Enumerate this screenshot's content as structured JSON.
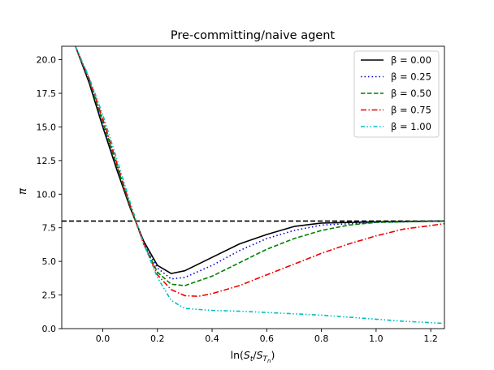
{
  "chart_data": {
    "type": "line",
    "title": "Pre-committing/naive agent",
    "xlabel": "ln(S_t/S_{T_n})",
    "ylabel": "π",
    "xlim": [
      -0.15,
      1.25
    ],
    "ylim": [
      0.0,
      21.0
    ],
    "xticks": [
      0.0,
      0.2,
      0.4,
      0.6,
      0.8,
      1.0,
      1.2
    ],
    "xtick_labels": [
      "0.0",
      "0.2",
      "0.4",
      "0.6",
      "0.8",
      "1.0",
      "1.2"
    ],
    "yticks": [
      0.0,
      2.5,
      5.0,
      7.5,
      10.0,
      12.5,
      15.0,
      17.5,
      20.0
    ],
    "ytick_labels": [
      "0.0",
      "2.5",
      "5.0",
      "7.5",
      "10.0",
      "12.5",
      "15.0",
      "17.5",
      "20.0"
    ],
    "legend_position": "top-right",
    "hline": {
      "y": 8.0,
      "style": "dashed",
      "color": "#000000"
    },
    "series": [
      {
        "name": "β = 0.00",
        "color": "#000000",
        "style": "solid",
        "x": [
          -0.1,
          -0.05,
          0.0,
          0.05,
          0.1,
          0.15,
          0.2,
          0.25,
          0.3,
          0.4,
          0.5,
          0.6,
          0.7,
          0.8,
          1.0,
          1.25
        ],
        "y": [
          21.0,
          18.3,
          15.0,
          11.9,
          9.0,
          6.5,
          4.7,
          4.1,
          4.3,
          5.3,
          6.3,
          7.0,
          7.6,
          7.85,
          7.95,
          8.0
        ]
      },
      {
        "name": "β = 0.25",
        "color": "#0000cc",
        "style": "dotted",
        "x": [
          -0.1,
          -0.05,
          0.0,
          0.05,
          0.1,
          0.15,
          0.2,
          0.25,
          0.3,
          0.4,
          0.5,
          0.6,
          0.7,
          0.8,
          1.0,
          1.25
        ],
        "y": [
          21.0,
          18.4,
          15.2,
          12.1,
          9.1,
          6.4,
          4.5,
          3.7,
          3.8,
          4.7,
          5.8,
          6.7,
          7.3,
          7.7,
          7.9,
          8.0
        ]
      },
      {
        "name": "β = 0.50",
        "color": "#008000",
        "style": "dashed",
        "x": [
          -0.1,
          -0.05,
          0.0,
          0.05,
          0.1,
          0.15,
          0.2,
          0.25,
          0.3,
          0.4,
          0.5,
          0.6,
          0.7,
          0.8,
          0.9,
          1.0,
          1.25
        ],
        "y": [
          21.0,
          18.5,
          15.4,
          12.2,
          9.1,
          6.3,
          4.2,
          3.3,
          3.2,
          3.9,
          4.9,
          5.9,
          6.7,
          7.3,
          7.7,
          7.9,
          8.0
        ]
      },
      {
        "name": "β = 0.75",
        "color": "#ee0000",
        "style": "dashdot",
        "x": [
          -0.1,
          -0.05,
          0.0,
          0.05,
          0.1,
          0.15,
          0.2,
          0.25,
          0.3,
          0.35,
          0.4,
          0.5,
          0.6,
          0.7,
          0.8,
          0.9,
          1.0,
          1.1,
          1.25
        ],
        "y": [
          21.0,
          18.6,
          15.6,
          12.4,
          9.2,
          6.3,
          4.0,
          2.9,
          2.45,
          2.4,
          2.6,
          3.2,
          4.0,
          4.8,
          5.6,
          6.3,
          6.9,
          7.4,
          7.8
        ]
      },
      {
        "name": "β = 1.00",
        "color": "#00bfbf",
        "style": "dashdotdot",
        "x": [
          -0.1,
          -0.05,
          0.0,
          0.05,
          0.1,
          0.15,
          0.2,
          0.25,
          0.3,
          0.4,
          0.5,
          0.6,
          0.7,
          0.8,
          0.9,
          1.0,
          1.1,
          1.24
        ],
        "y": [
          21.0,
          18.7,
          15.9,
          12.7,
          9.4,
          6.3,
          3.8,
          2.1,
          1.5,
          1.35,
          1.3,
          1.2,
          1.1,
          1.0,
          0.85,
          0.7,
          0.55,
          0.4
        ]
      }
    ]
  }
}
